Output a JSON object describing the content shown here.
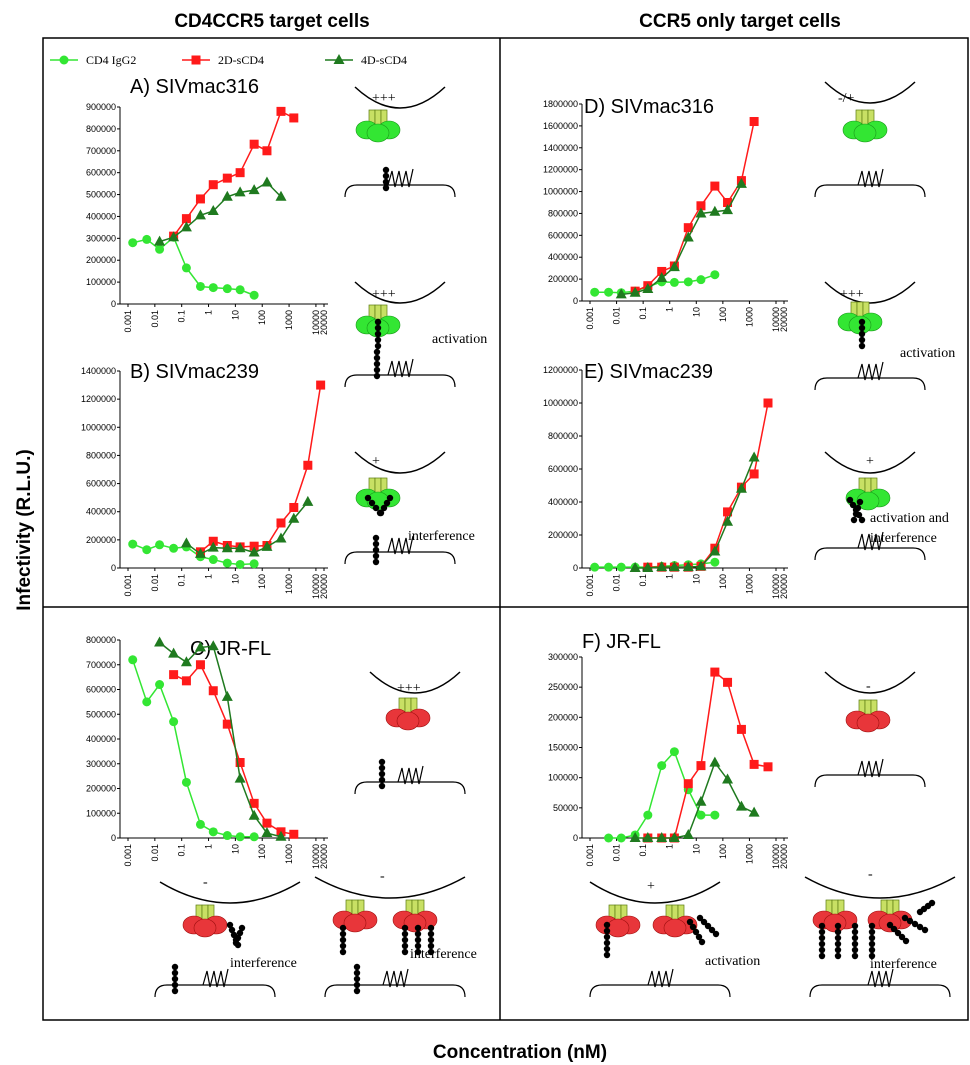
{
  "header": {
    "columns": [
      "CD4CCR5 target cells",
      "CCR5 only target cells"
    ],
    "ylabel": "Infectivity (R.L.U.)",
    "xlabel": "Concentration (nM)"
  },
  "chart_data": [
    {
      "type": "line",
      "title": "A) SIVmac316",
      "xscale": "log",
      "xlim": [
        0.001,
        20000
      ],
      "xticks": [
        0.001,
        0.01,
        0.1,
        1,
        10,
        100,
        1000,
        10000,
        20000
      ],
      "ylim": [
        0,
        900000
      ],
      "yticks": [
        0,
        100000,
        200000,
        300000,
        400000,
        500000,
        600000,
        700000,
        800000,
        900000
      ],
      "series": [
        {
          "name": "CD4 IgG2",
          "color": "#33e633",
          "marker": "circle",
          "x": [
            0.0015,
            0.005,
            0.015,
            0.05,
            0.15,
            0.5,
            1.5,
            5,
            15,
            50
          ],
          "values": [
            280000,
            295000,
            250000,
            305000,
            165000,
            80000,
            75000,
            70000,
            65000,
            40000
          ]
        },
        {
          "name": "2D-sCD4",
          "color": "#ff1a1a",
          "marker": "square",
          "x": [
            0.05,
            0.15,
            0.5,
            1.5,
            5,
            15,
            50,
            150,
            500,
            1500
          ],
          "values": [
            310000,
            390000,
            480000,
            545000,
            575000,
            600000,
            730000,
            700000,
            880000,
            850000
          ]
        },
        {
          "name": "4D-sCD4",
          "color": "#1f7a1f",
          "marker": "triangle",
          "x": [
            0.015,
            0.05,
            0.15,
            0.5,
            1.5,
            5,
            15,
            50,
            150,
            500
          ],
          "values": [
            285000,
            305000,
            350000,
            405000,
            425000,
            490000,
            510000,
            520000,
            555000,
            490000
          ]
        }
      ],
      "annotations": [
        "+++",
        "+++",
        "activation"
      ]
    },
    {
      "type": "line",
      "title": "B) SIVmac239",
      "xscale": "log",
      "xlim": [
        0.001,
        20000
      ],
      "xticks": [
        0.001,
        0.01,
        0.1,
        1,
        10,
        100,
        1000,
        10000,
        20000
      ],
      "ylim": [
        0,
        1400000
      ],
      "yticks": [
        0,
        200000,
        400000,
        600000,
        800000,
        1000000,
        1200000,
        1400000
      ],
      "series": [
        {
          "name": "CD4 IgG2",
          "color": "#33e633",
          "marker": "circle",
          "x": [
            0.0015,
            0.005,
            0.015,
            0.05,
            0.15,
            0.5,
            1.5,
            5,
            15,
            50
          ],
          "values": [
            170000,
            130000,
            165000,
            140000,
            150000,
            80000,
            60000,
            35000,
            25000,
            30000
          ]
        },
        {
          "name": "2D-sCD4",
          "color": "#ff1a1a",
          "marker": "square",
          "x": [
            0.5,
            1.5,
            5,
            15,
            50,
            150,
            500,
            1500,
            5000,
            15000
          ],
          "values": [
            115000,
            190000,
            160000,
            150000,
            155000,
            160000,
            320000,
            430000,
            730000,
            1300000
          ]
        },
        {
          "name": "4D-sCD4",
          "color": "#1f7a1f",
          "marker": "triangle",
          "x": [
            0.15,
            0.5,
            1.5,
            5,
            15,
            50,
            150,
            500,
            1500,
            5000
          ],
          "values": [
            175000,
            100000,
            145000,
            140000,
            140000,
            110000,
            150000,
            210000,
            350000,
            470000
          ]
        }
      ],
      "annotations": [
        "+",
        "interference"
      ]
    },
    {
      "type": "line",
      "title": "C) JR-FL",
      "xscale": "log",
      "xlim": [
        0.001,
        20000
      ],
      "xticks": [
        0.001,
        0.01,
        0.1,
        1,
        10,
        100,
        1000,
        10000,
        20000
      ],
      "ylim": [
        0,
        800000
      ],
      "yticks": [
        0,
        100000,
        200000,
        300000,
        400000,
        500000,
        600000,
        700000,
        800000
      ],
      "series": [
        {
          "name": "CD4 IgG2",
          "color": "#33e633",
          "marker": "circle",
          "x": [
            0.0015,
            0.005,
            0.015,
            0.05,
            0.15,
            0.5,
            1.5,
            5,
            15,
            50
          ],
          "values": [
            720000,
            550000,
            620000,
            470000,
            225000,
            55000,
            25000,
            10000,
            5000,
            5000
          ]
        },
        {
          "name": "2D-sCD4",
          "color": "#ff1a1a",
          "marker": "square",
          "x": [
            0.05,
            0.15,
            0.5,
            1.5,
            5,
            15,
            50,
            150,
            500,
            1500
          ],
          "values": [
            660000,
            635000,
            700000,
            595000,
            460000,
            305000,
            140000,
            60000,
            25000,
            15000
          ]
        },
        {
          "name": "4D-sCD4",
          "color": "#1f7a1f",
          "marker": "triangle",
          "x": [
            0.015,
            0.05,
            0.15,
            0.5,
            1.5,
            5,
            15,
            50,
            150,
            500
          ],
          "values": [
            790000,
            745000,
            710000,
            770000,
            775000,
            570000,
            240000,
            90000,
            20000,
            5000
          ]
        }
      ],
      "annotations": [
        "+++",
        "-",
        "interference",
        "-",
        "interference"
      ]
    },
    {
      "type": "line",
      "title": "D) SIVmac316",
      "xscale": "log",
      "xlim": [
        0.001,
        20000
      ],
      "xticks": [
        0.001,
        0.01,
        0.1,
        1,
        10,
        100,
        1000,
        10000,
        20000
      ],
      "ylim": [
        0,
        1800000
      ],
      "yticks": [
        0,
        200000,
        400000,
        600000,
        800000,
        1000000,
        1200000,
        1400000,
        1600000,
        1800000
      ],
      "series": [
        {
          "name": "CD4 IgG2",
          "color": "#33e633",
          "marker": "circle",
          "x": [
            0.0015,
            0.005,
            0.015,
            0.05,
            0.15,
            0.5,
            1.5,
            5,
            15,
            50
          ],
          "values": [
            80000,
            80000,
            75000,
            90000,
            130000,
            175000,
            170000,
            175000,
            195000,
            240000
          ]
        },
        {
          "name": "2D-sCD4",
          "color": "#ff1a1a",
          "marker": "square",
          "x": [
            0.05,
            0.15,
            0.5,
            1.5,
            5,
            15,
            50,
            150,
            500,
            1500
          ],
          "values": [
            90000,
            140000,
            270000,
            320000,
            670000,
            870000,
            1050000,
            900000,
            1100000,
            1640000
          ]
        },
        {
          "name": "4D-sCD4",
          "color": "#1f7a1f",
          "marker": "triangle",
          "x": [
            0.015,
            0.05,
            0.15,
            0.5,
            1.5,
            5,
            15,
            50,
            150,
            500
          ],
          "values": [
            60000,
            75000,
            110000,
            210000,
            310000,
            580000,
            800000,
            815000,
            830000,
            1070000
          ]
        }
      ],
      "annotations": [
        "-/+",
        "+++",
        "activation"
      ]
    },
    {
      "type": "line",
      "title": "E) SIVmac239",
      "xscale": "log",
      "xlim": [
        0.001,
        20000
      ],
      "xticks": [
        0.001,
        0.01,
        0.1,
        1,
        10,
        100,
        1000,
        10000,
        20000
      ],
      "ylim": [
        0,
        1200000
      ],
      "yticks": [
        0,
        200000,
        400000,
        600000,
        800000,
        1000000,
        1200000
      ],
      "series": [
        {
          "name": "CD4 IgG2",
          "color": "#33e633",
          "marker": "circle",
          "x": [
            0.0015,
            0.005,
            0.015,
            0.05,
            0.15,
            0.5,
            1.5,
            5,
            15,
            50
          ],
          "values": [
            5000,
            5000,
            5000,
            5000,
            5000,
            10000,
            15000,
            20000,
            25000,
            35000
          ]
        },
        {
          "name": "2D-sCD4",
          "color": "#ff1a1a",
          "marker": "square",
          "x": [
            0.15,
            0.5,
            1.5,
            5,
            15,
            50,
            150,
            500,
            1500,
            5000
          ],
          "values": [
            5000,
            5000,
            5000,
            5000,
            10000,
            120000,
            340000,
            490000,
            570000,
            1000000
          ]
        },
        {
          "name": "4D-sCD4",
          "color": "#1f7a1f",
          "marker": "triangle",
          "x": [
            0.05,
            0.15,
            0.5,
            1.5,
            5,
            15,
            50,
            150,
            500,
            1500
          ],
          "values": [
            0,
            0,
            5000,
            5000,
            5000,
            10000,
            100000,
            280000,
            480000,
            670000
          ]
        }
      ],
      "annotations": [
        "+",
        "activation and",
        "interference"
      ]
    },
    {
      "type": "line",
      "title": "F) JR-FL",
      "xscale": "log",
      "xlim": [
        0.001,
        20000
      ],
      "xticks": [
        0.001,
        0.01,
        0.1,
        1,
        10,
        100,
        1000,
        10000,
        20000
      ],
      "ylim": [
        0,
        300000
      ],
      "yticks": [
        0,
        50000,
        100000,
        150000,
        200000,
        250000,
        300000
      ],
      "series": [
        {
          "name": "CD4 IgG2",
          "color": "#33e633",
          "marker": "circle",
          "x": [
            0.005,
            0.015,
            0.05,
            0.15,
            0.5,
            1.5,
            5,
            15,
            50
          ],
          "values": [
            0,
            0,
            5000,
            38000,
            120000,
            143000,
            80000,
            38000,
            38000
          ]
        },
        {
          "name": "2D-sCD4",
          "color": "#ff1a1a",
          "marker": "square",
          "x": [
            0.15,
            0.5,
            1.5,
            5,
            15,
            50,
            150,
            500,
            1500,
            5000
          ],
          "values": [
            0,
            0,
            0,
            90000,
            120000,
            275000,
            258000,
            180000,
            122000,
            118000
          ]
        },
        {
          "name": "4D-sCD4",
          "color": "#1f7a1f",
          "marker": "triangle",
          "x": [
            0.05,
            0.15,
            0.5,
            1.5,
            5,
            15,
            50,
            150,
            500,
            1500
          ],
          "values": [
            0,
            0,
            0,
            0,
            5000,
            60000,
            125000,
            97000,
            52000,
            42000
          ]
        }
      ],
      "annotations": [
        "-",
        "+",
        "activation",
        "-",
        "interference"
      ]
    }
  ]
}
